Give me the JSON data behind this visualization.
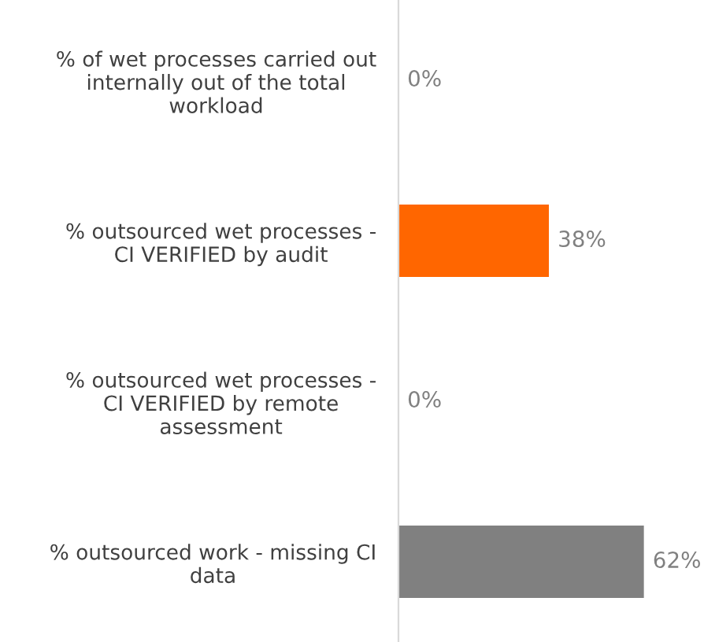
{
  "chart_data": {
    "type": "bar",
    "orientation": "horizontal",
    "categories": [
      "% of wet processes carried out internally out of the total workload",
      "% outsourced wet processes - CI VERIFIED by audit",
      "% outsourced wet processes - CI VERIFIED by remote assessment",
      "% outsourced work - missing CI data"
    ],
    "values": [
      0,
      38,
      0,
      62
    ],
    "colors": [
      "#ff6600",
      "#ff6600",
      "#808080",
      "#808080"
    ],
    "value_labels": [
      "0%",
      "38%",
      "0%",
      "62%"
    ],
    "grid": false,
    "legend": false
  }
}
